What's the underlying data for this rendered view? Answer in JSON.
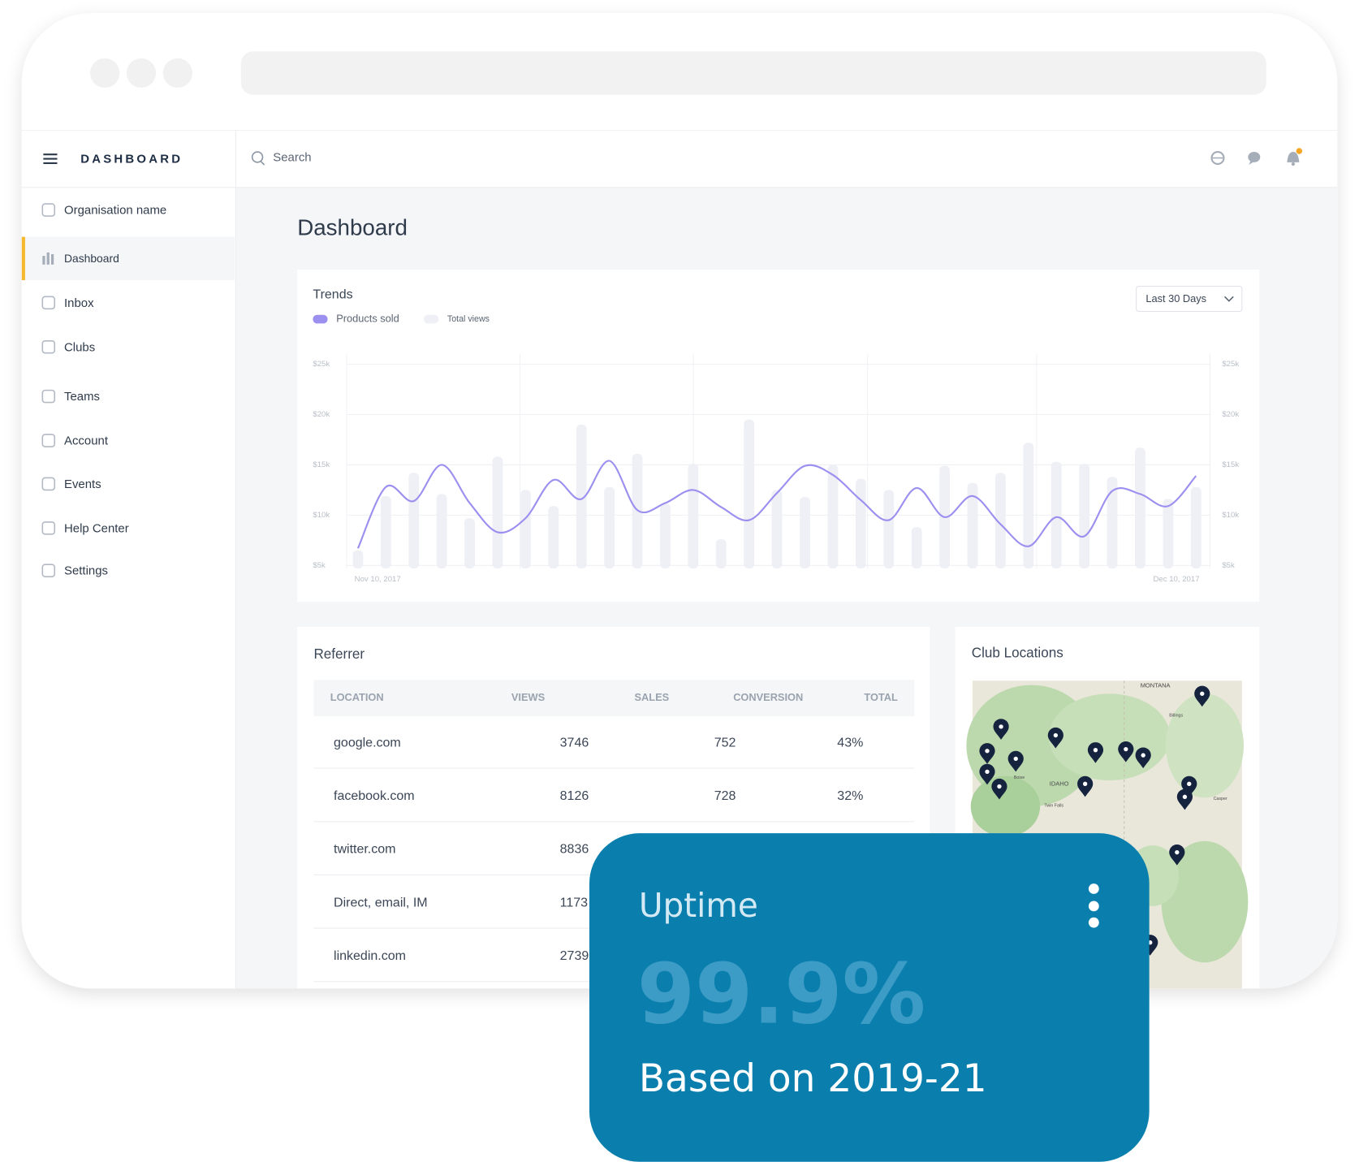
{
  "sidebar": {
    "brand": "DASHBOARD",
    "items": [
      "Organisation name",
      "Dashboard",
      "Inbox",
      "Clubs",
      "Teams",
      "Account",
      "Events",
      "Help Center",
      "Settings"
    ],
    "active": 1
  },
  "topbar": {
    "search": "Search"
  },
  "page_title": "Dashboard",
  "range_selector": "Last 30 Days",
  "chart_data": {
    "type": "bar",
    "title": "Trends",
    "categories": [
      "Nov 10, 2017",
      null,
      null,
      null,
      null,
      null,
      null,
      null,
      null,
      null,
      null,
      null,
      null,
      null,
      null,
      null,
      null,
      null,
      null,
      null,
      null,
      null,
      null,
      null,
      null,
      null,
      null,
      null,
      null,
      null,
      "Dec 10, 2017"
    ],
    "series": [
      {
        "name": "Products sold",
        "type": "line",
        "color": "#9b8fef",
        "values": [
          6700,
          12800,
          11400,
          15000,
          11200,
          8300,
          9700,
          13500,
          11600,
          15400,
          10500,
          11200,
          12500,
          10800,
          9500,
          12200,
          14900,
          14000,
          11500,
          9500,
          12700,
          9800,
          11900,
          9100,
          6900,
          9800,
          7900,
          12400,
          12100,
          10900,
          13900
        ]
      },
      {
        "name": "Total views",
        "type": "bar",
        "color": "#eef0f6",
        "values": [
          6500,
          11900,
          14200,
          12100,
          9700,
          15800,
          12500,
          10900,
          19000,
          12800,
          16100,
          11200,
          15100,
          7600,
          19500,
          12500,
          11800,
          15000,
          13600,
          12500,
          8800,
          14900,
          13200,
          14200,
          17200,
          15300,
          15100,
          13800,
          16700,
          11600,
          12800
        ]
      }
    ],
    "ylim": [
      4700,
      26000
    ],
    "yticks": [
      {
        "value": 5000,
        "label": "$5k"
      },
      {
        "value": 10000,
        "label": "$10k"
      },
      {
        "value": 15000,
        "label": "$15k"
      },
      {
        "value": 20000,
        "label": "$20k"
      },
      {
        "value": 25000,
        "label": "$25k"
      }
    ],
    "grid": true
  },
  "referrer": {
    "title": "Referrer",
    "columns": [
      "LOCATION",
      "VIEWS",
      "SALES",
      "CONVERSION",
      "TOTAL"
    ],
    "rows": [
      [
        "google.com",
        3746,
        752,
        "43%"
      ],
      [
        "facebook.com",
        8126,
        728,
        "32%"
      ],
      [
        "twitter.com",
        8836
      ],
      [
        "Direct, email, IM",
        1173
      ],
      [
        "linkedin.com",
        2739
      ]
    ]
  },
  "club_locations": {
    "title": "Club Locations",
    "map_labels": [
      "MONTANA",
      "IDAHO",
      "Billings",
      "Boise",
      "Twin Falls",
      "Casper"
    ]
  },
  "uptime": {
    "title": "Uptime",
    "value": "99.9%",
    "note": "Based on 2019-21"
  }
}
